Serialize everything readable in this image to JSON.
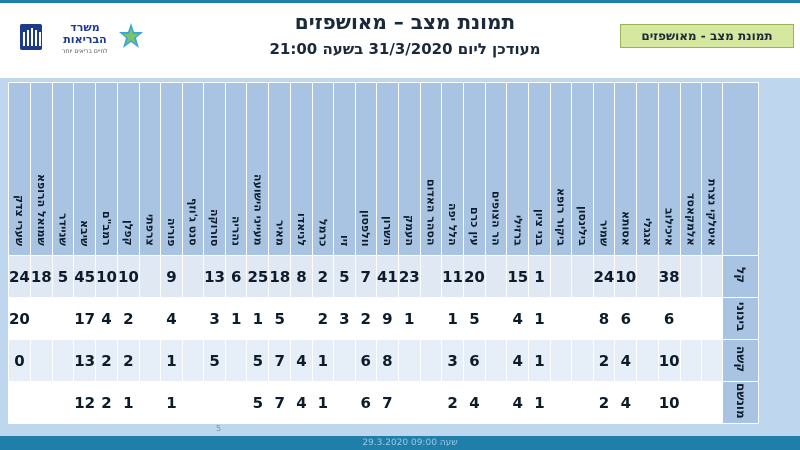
{
  "header": {
    "title": "תמונת מצב – מאושפזים",
    "subtitle": "מעודכן ליום 31/3/2020 בשעה 21:00",
    "tag": "תמונת מצב - מאושפזים"
  },
  "logo": {
    "line1": "משרד",
    "line2": "הבריאות",
    "line3": "לחיים בריאים יותר"
  },
  "footer": {
    "text": "29.3.2020 שעה 09:00",
    "page": "5"
  },
  "colors": {
    "header_fill": "#a8c4e2",
    "frame": "#bfd7ee",
    "bar": "#1f7fa8",
    "tag_fill": "#d6e8a0"
  },
  "table": {
    "row_labels": [
      "קל",
      "בינוני",
      "קשה",
      "מונשם"
    ],
    "columns": [
      {
        "name": "איטלקי נצרת",
        "values": [
          "",
          "",
          "",
          ""
        ]
      },
      {
        "name": "אלמקאסד",
        "values": [
          "",
          "",
          "",
          ""
        ]
      },
      {
        "name": "איכילוב",
        "values": [
          "38",
          "6",
          "10",
          "10"
        ]
      },
      {
        "name": "אגגלי",
        "values": [
          "",
          "",
          "",
          ""
        ]
      },
      {
        "name": "אסותא",
        "values": [
          "10",
          "6",
          "4",
          "4"
        ]
      },
      {
        "name": "שמיר",
        "values": [
          "24",
          "8",
          "2",
          "2"
        ]
      },
      {
        "name": "בילינסון",
        "values": [
          "",
          "",
          "",
          ""
        ]
      },
      {
        "name": "ביקור רופא",
        "values": [
          "",
          "",
          "",
          ""
        ]
      },
      {
        "name": "בני ציון",
        "values": [
          "1",
          "1",
          "1",
          "1"
        ]
      },
      {
        "name": "ברזילי",
        "values": [
          "15",
          "4",
          "4",
          "4"
        ]
      },
      {
        "name": "הר הצופים",
        "values": [
          "",
          "",
          "",
          ""
        ]
      },
      {
        "name": "עין כרם",
        "values": [
          "20",
          "5",
          "6",
          "4"
        ]
      },
      {
        "name": "הלל יפה",
        "values": [
          "11",
          "1",
          "3",
          "2"
        ]
      },
      {
        "name": "הסהר האדום",
        "values": [
          "",
          "",
          "",
          ""
        ]
      },
      {
        "name": "העמק",
        "values": [
          "23",
          "1",
          "",
          ""
        ]
      },
      {
        "name": "השרון",
        "values": [
          "41",
          "9",
          "8",
          "7"
        ]
      },
      {
        "name": "וולפסון",
        "values": [
          "7",
          "2",
          "6",
          "6"
        ]
      },
      {
        "name": "זיו",
        "values": [
          "5",
          "3",
          "",
          ""
        ]
      },
      {
        "name": "כרמל",
        "values": [
          "2",
          "2",
          "1",
          "1"
        ]
      },
      {
        "name": "לניאדו",
        "values": [
          "8",
          "",
          "4",
          "4"
        ]
      },
      {
        "name": "מאיר",
        "values": [
          "18",
          "5",
          "7",
          "7"
        ]
      },
      {
        "name": "מעייני הישועה",
        "values": [
          "25",
          "1",
          "5",
          "5"
        ]
      },
      {
        "name": "נהריה",
        "values": [
          "6",
          "1",
          "",
          ""
        ]
      },
      {
        "name": "סורוקה",
        "values": [
          "13",
          "3",
          "5",
          ""
        ]
      },
      {
        "name": "סנט ג'וזף",
        "values": [
          "",
          "",
          "",
          ""
        ]
      },
      {
        "name": "פוריה",
        "values": [
          "9",
          "4",
          "1",
          "1"
        ]
      },
      {
        "name": "צרפתי",
        "values": [
          "",
          "",
          "",
          ""
        ]
      },
      {
        "name": "קפלן",
        "values": [
          "10",
          "2",
          "2",
          "1"
        ]
      },
      {
        "name": "רמב\"ם",
        "values": [
          "10",
          "4",
          "2",
          "2"
        ]
      },
      {
        "name": "שיבא",
        "values": [
          "45",
          "17",
          "13",
          "12"
        ]
      },
      {
        "name": "שניידר",
        "values": [
          "5",
          "",
          "",
          ""
        ]
      },
      {
        "name": "שמואל הרופא",
        "values": [
          "18",
          "",
          "",
          ""
        ]
      },
      {
        "name": "שערי צדק",
        "values": [
          "24",
          "20",
          "0",
          ""
        ]
      }
    ]
  }
}
